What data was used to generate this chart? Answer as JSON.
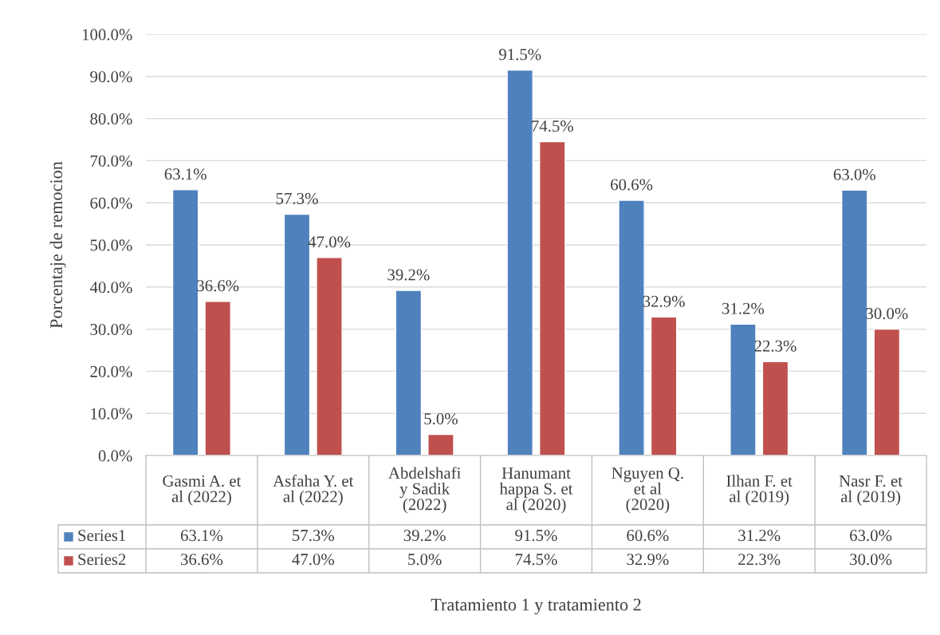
{
  "chart_data": {
    "type": "bar",
    "xlabel": "Tratamiento 1 y tratamiento 2",
    "ylabel": "Porcentaje de remocion",
    "categories": [
      "Gasmi A. et\nal (2022)",
      "Asfaha Y. et\nal (2022)",
      "Abdelshafi\ny Sadik\n(2022)",
      "Hanumant\nhappa S. et\nal (2020)",
      "Nguyen Q.\net al\n(2020)",
      "Ilhan F. et\nal (2019)",
      "Nasr F. et\nal (2019)"
    ],
    "series": [
      {
        "name": "Series1",
        "color": "#4f81bd",
        "values": [
          63.1,
          57.3,
          39.2,
          91.5,
          60.6,
          31.2,
          63.0
        ],
        "value_labels": [
          "63.1%",
          "57.3%",
          "39.2%",
          "91.5%",
          "60.6%",
          "31.2%",
          "63.0%"
        ]
      },
      {
        "name": "Series2",
        "color": "#c0504d",
        "values": [
          36.6,
          47.0,
          5.0,
          74.5,
          32.9,
          22.3,
          30.0
        ],
        "value_labels": [
          "36.6%",
          "47.0%",
          "5.0%",
          "74.5%",
          "32.9%",
          "22.3%",
          "30.0%"
        ]
      }
    ],
    "ylim": [
      0,
      100
    ],
    "yticks": [
      {
        "value": 0,
        "label": "0.0%"
      },
      {
        "value": 10,
        "label": "10.0%"
      },
      {
        "value": 20,
        "label": "20.0%"
      },
      {
        "value": 30,
        "label": "30.0%"
      },
      {
        "value": 40,
        "label": "40.0%"
      },
      {
        "value": 50,
        "label": "50.0%"
      },
      {
        "value": 60,
        "label": "60.0%"
      },
      {
        "value": 70,
        "label": "70.0%"
      },
      {
        "value": 80,
        "label": "80.0%"
      },
      {
        "value": 90,
        "label": "90.0%"
      },
      {
        "value": 100,
        "label": "100.0%"
      }
    ],
    "grid": "y",
    "legend": "bottom"
  }
}
